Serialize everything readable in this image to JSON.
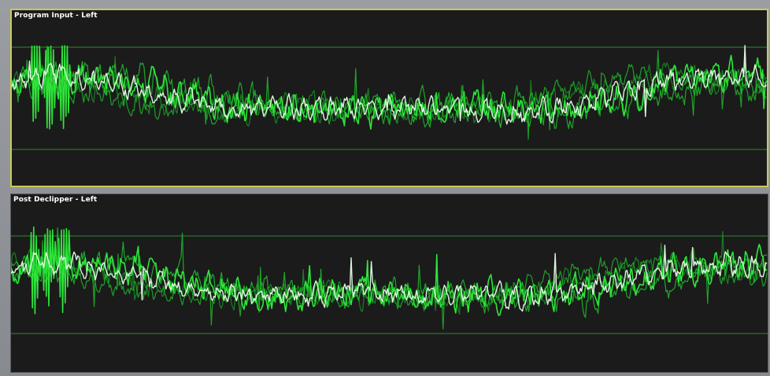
{
  "window": {
    "panels": [
      {
        "title": "Program Input - Left",
        "selected": true,
        "channel": "left",
        "stage": "program-input"
      },
      {
        "title": "Post Declipper - Left",
        "selected": false,
        "channel": "left",
        "stage": "post-declipper"
      }
    ]
  },
  "colors": {
    "background": "#1b1b1b",
    "selected_border": "#c9c85a",
    "reference_line": "#2f8a2f",
    "trace_bright": "#2ee63a",
    "trace_mid": "#1fbf2c",
    "trace_dim": "#1a8a24",
    "trace_white": "#e8ffe8",
    "title_text": "#ffffff"
  }
}
